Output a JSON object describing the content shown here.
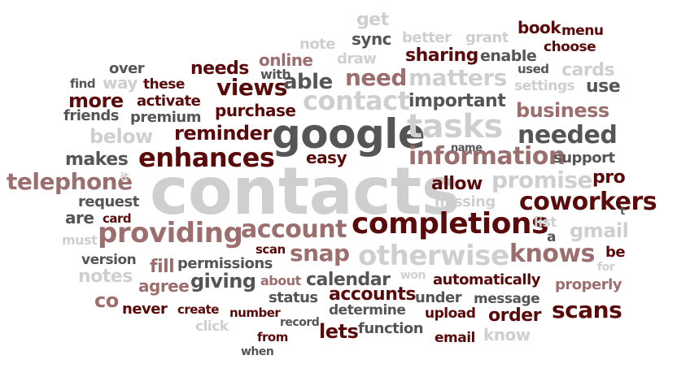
{
  "colors": {
    "red": "#5a0a0a",
    "rose": "#9c6e6e",
    "dark": "#555555",
    "light": "#cfcfcf",
    "background": "#ffffff"
  },
  "words": [
    "get",
    "book",
    "menu",
    "note",
    "sync",
    "better",
    "grant",
    "choose",
    "online",
    "draw",
    "sharing",
    "enable",
    "cards",
    "over",
    "needs",
    "with",
    "need",
    "matters",
    "used",
    "find",
    "way",
    "these",
    "views",
    "able",
    "settings",
    "use",
    "more",
    "activate",
    "contact",
    "important",
    "friends",
    "premium",
    "purchase",
    "business",
    "google",
    "tasks",
    "below",
    "reminder",
    "needed",
    "makes",
    "enhances",
    "easy",
    "information",
    "name",
    "support",
    "telephone",
    "it",
    "contacts",
    "allow",
    "promise",
    "pro",
    "request",
    "missing",
    "coworkers",
    "are",
    "card",
    "account",
    "completions",
    "list",
    "t",
    "must",
    "providing",
    "a",
    "gmail",
    "scan",
    "snap",
    "otherwise",
    "knows",
    "version",
    "fill",
    "permissions",
    "be",
    "notes",
    "won",
    "for",
    "agree",
    "giving",
    "about",
    "calendar",
    "automatically",
    "properly",
    "co",
    "accounts",
    "status",
    "under",
    "message",
    "never",
    "create",
    "number",
    "record",
    "determine",
    "upload",
    "order",
    "scans",
    "click",
    "lets",
    "function",
    "from",
    "email",
    "know",
    "when"
  ]
}
